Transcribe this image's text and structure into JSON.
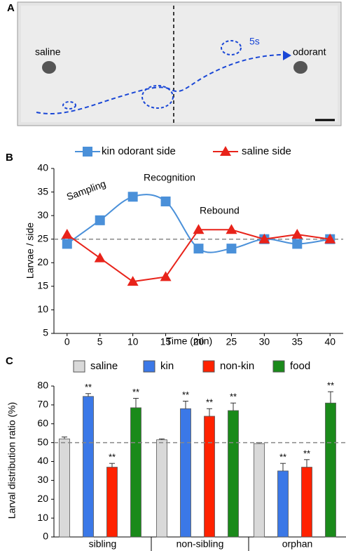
{
  "photo": {
    "panel_label": "A",
    "saline_label": "saline",
    "odorant_label": "odorant",
    "time_label": "5s"
  },
  "chart_data": [
    {
      "type": "line",
      "panel_label": "B",
      "x_label": "Time (min)",
      "y_label": "Larvae / side",
      "x": [
        0,
        5,
        10,
        15,
        20,
        25,
        30,
        35,
        40
      ],
      "xlim": [
        -2,
        42
      ],
      "xticks": [
        0,
        5,
        10,
        15,
        20,
        25,
        30,
        35,
        40
      ],
      "ylim": [
        5,
        40
      ],
      "yticks": [
        5,
        10,
        15,
        20,
        25,
        30,
        35,
        40
      ],
      "reference_line": 25,
      "annotations": [
        "Sampling",
        "Recognition",
        "Rebound"
      ],
      "series": [
        {
          "name": "kin odorant side",
          "color": "#4a90d9",
          "marker": "square",
          "smooth": true,
          "values": [
            24,
            29,
            34,
            33,
            23,
            23,
            25,
            24,
            25
          ]
        },
        {
          "name": "saline side",
          "color": "#e8231a",
          "marker": "triangle",
          "smooth": false,
          "values": [
            26,
            21,
            16,
            17,
            27,
            27,
            25,
            26,
            25
          ]
        }
      ]
    },
    {
      "type": "bar",
      "panel_label": "C",
      "y_label": "Larval distribution ratio (%)",
      "categories": [
        "sibling",
        "non-sibling",
        "orphan"
      ],
      "ylim": [
        0,
        80
      ],
      "yticks": [
        0,
        10,
        20,
        30,
        40,
        50,
        60,
        70,
        80
      ],
      "reference_line": 50,
      "series": [
        {
          "name": "saline",
          "color": "#d9d9d9",
          "values": [
            52,
            51.5,
            49.5
          ],
          "errors": [
            1,
            0.5,
            0.5
          ]
        },
        {
          "name": "kin",
          "color": "#3b78e7",
          "values": [
            74.5,
            68,
            35
          ],
          "errors": [
            1.5,
            4,
            4
          ],
          "significance": [
            "**",
            "**",
            "**"
          ]
        },
        {
          "name": "non-kin",
          "color": "#ff2200",
          "values": [
            37,
            64,
            37
          ],
          "errors": [
            2,
            4,
            4
          ],
          "significance": [
            "**",
            "**",
            "**"
          ]
        },
        {
          "name": "food",
          "color": "#1a8a1a",
          "values": [
            68.5,
            67,
            71
          ],
          "errors": [
            5,
            4,
            6
          ],
          "significance": [
            "**",
            "**",
            "**"
          ]
        }
      ]
    }
  ]
}
